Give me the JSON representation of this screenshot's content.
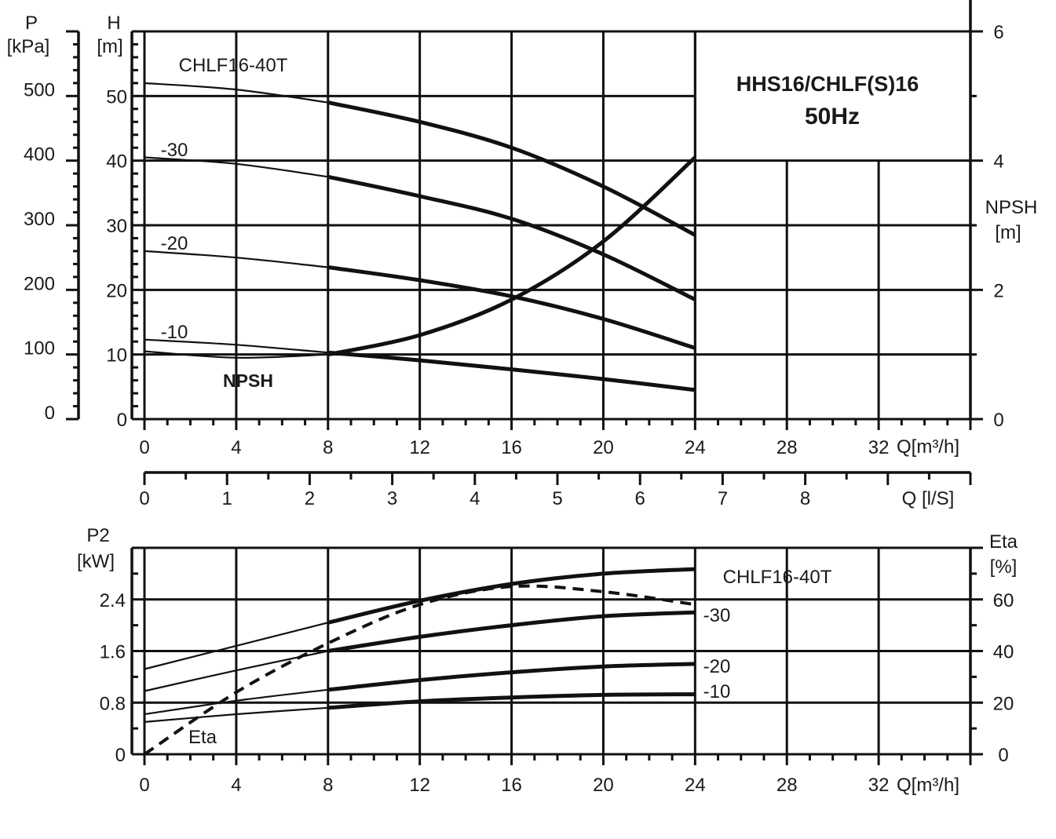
{
  "chart_data": [
    {
      "type": "line",
      "title": "HHS16/CHLF(S)16",
      "subtitle": "50Hz",
      "x_axis": {
        "label": "Q[m³/h]",
        "range": [
          0,
          36
        ],
        "ticks": [
          "0",
          "4",
          "8",
          "12",
          "16",
          "20",
          "24",
          "28",
          "32"
        ]
      },
      "x2_axis": {
        "label": "Q [l/S]",
        "range": [
          0,
          10
        ],
        "ticks": [
          "0",
          "1",
          "2",
          "3",
          "4",
          "5",
          "6",
          "7",
          "8"
        ]
      },
      "y_axis_left_outer": {
        "label_line1": "P",
        "label_line2": "[kPa]",
        "range": [
          0,
          600
        ],
        "ticks": [
          "0",
          "100",
          "200",
          "300",
          "400",
          "500"
        ]
      },
      "y_axis_left": {
        "label_line1": "H",
        "label_line2": "[m]",
        "range": [
          0,
          60
        ],
        "ticks": [
          "0",
          "10",
          "20",
          "30",
          "40",
          "50"
        ]
      },
      "y_axis_right": {
        "label_line1": "NPSH",
        "label_line2": "[m]",
        "range": [
          0,
          6
        ],
        "ticks": [
          "0",
          "2",
          "4",
          "6"
        ]
      },
      "grid": true,
      "series": [
        {
          "name": "CHLF16-40T",
          "x": [
            0,
            4,
            8,
            12,
            16,
            20,
            24
          ],
          "y": [
            52,
            51,
            49,
            46,
            42,
            36,
            28.5
          ]
        },
        {
          "name": "-30",
          "x": [
            0,
            4,
            8,
            12,
            16,
            20,
            24
          ],
          "y": [
            40.5,
            39.5,
            37.5,
            34.5,
            31,
            25.5,
            18.5
          ]
        },
        {
          "name": "-20",
          "x": [
            0,
            4,
            8,
            12,
            16,
            20,
            24
          ],
          "y": [
            26,
            25,
            23.5,
            21.5,
            19,
            15.5,
            11
          ]
        },
        {
          "name": "-10",
          "x": [
            0,
            4,
            8,
            12,
            16,
            20,
            24
          ],
          "y": [
            12.3,
            11.5,
            10.3,
            9.1,
            7.7,
            6.2,
            4.5
          ]
        },
        {
          "name": "NPSH",
          "axis": "right",
          "x": [
            0,
            4,
            8,
            12,
            16,
            20,
            24
          ],
          "y": [
            1.05,
            0.95,
            1.0,
            1.3,
            1.85,
            2.75,
            4.05
          ]
        }
      ]
    },
    {
      "type": "line",
      "x_axis": {
        "label": "Q[m³/h]",
        "range": [
          0,
          36
        ],
        "ticks": [
          "0",
          "4",
          "8",
          "12",
          "16",
          "20",
          "24",
          "28",
          "32"
        ]
      },
      "y_axis_left": {
        "label_line1": "P2",
        "label_line2": "[kW]",
        "range": [
          0,
          3.2
        ],
        "ticks": [
          "0",
          "0.8",
          "1.6",
          "2.4"
        ]
      },
      "y_axis_right": {
        "label_line1": "Eta",
        "label_line2": "[%]",
        "range": [
          0,
          80
        ],
        "ticks": [
          "0",
          "20",
          "40",
          "60"
        ]
      },
      "grid": true,
      "series": [
        {
          "name": "CHLF16-40T",
          "x": [
            0,
            4,
            8,
            12,
            16,
            20,
            24
          ],
          "y": [
            1.32,
            1.68,
            2.04,
            2.38,
            2.64,
            2.8,
            2.87
          ]
        },
        {
          "name": "-30",
          "x": [
            0,
            4,
            8,
            12,
            16,
            20,
            24
          ],
          "y": [
            0.98,
            1.3,
            1.6,
            1.82,
            2.0,
            2.14,
            2.2
          ]
        },
        {
          "name": "-20",
          "x": [
            0,
            4,
            8,
            12,
            16,
            20,
            24
          ],
          "y": [
            0.62,
            0.83,
            1.0,
            1.15,
            1.27,
            1.36,
            1.4
          ]
        },
        {
          "name": "-10",
          "x": [
            0,
            4,
            8,
            12,
            16,
            20,
            24
          ],
          "y": [
            0.5,
            0.62,
            0.72,
            0.82,
            0.88,
            0.92,
            0.93
          ]
        },
        {
          "name": "Eta",
          "axis": "right",
          "x": [
            0,
            4,
            8,
            12,
            16,
            20,
            24
          ],
          "y": [
            0,
            24,
            43,
            58,
            65,
            63,
            58
          ]
        }
      ]
    }
  ]
}
